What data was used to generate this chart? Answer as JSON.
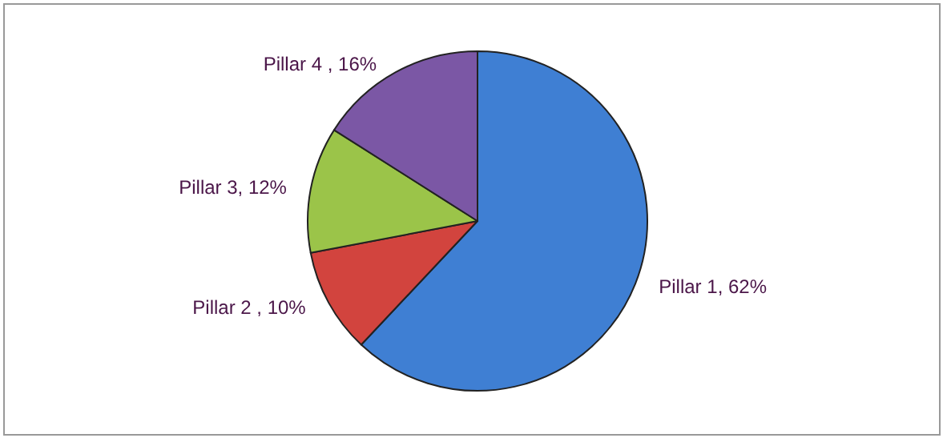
{
  "chart_data": {
    "type": "pie",
    "categories": [
      "Pillar 1",
      "Pillar 2 ",
      "Pillar 3",
      "Pillar 4 "
    ],
    "values": [
      62,
      10,
      12,
      16
    ],
    "value_labels": [
      "62%",
      "10%",
      "12%",
      "16%"
    ],
    "colors": [
      "#3f7fd3",
      "#d2443e",
      "#9bc449",
      "#7b57a5"
    ],
    "legend": false
  }
}
